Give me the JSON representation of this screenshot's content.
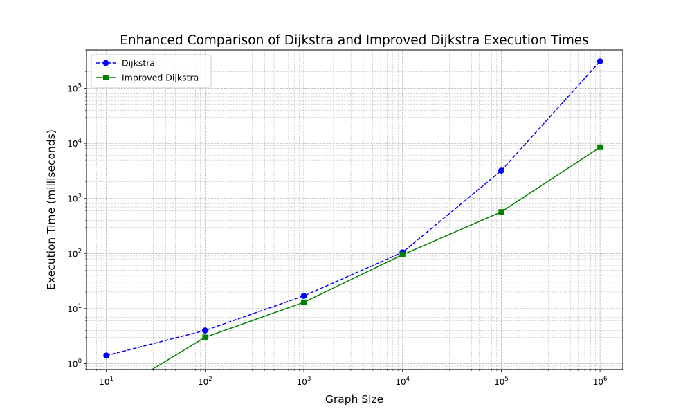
{
  "chart_data": {
    "type": "line",
    "title": "Enhanced Comparison of Dijkstra and Improved Dijkstra Execution Times",
    "xlabel": "Graph Size",
    "ylabel": "Execution Time (milliseconds)",
    "xscale": "log",
    "yscale": "log",
    "xlim": [
      6.3,
      1700000
    ],
    "ylim": [
      0.78,
      500000
    ],
    "grid": true,
    "legend_position": "top-left",
    "x_ticks": [
      {
        "value": 10,
        "base": "10",
        "exp": "1"
      },
      {
        "value": 100,
        "base": "10",
        "exp": "2"
      },
      {
        "value": 1000,
        "base": "10",
        "exp": "3"
      },
      {
        "value": 10000,
        "base": "10",
        "exp": "4"
      },
      {
        "value": 100000,
        "base": "10",
        "exp": "5"
      },
      {
        "value": 1000000,
        "base": "10",
        "exp": "6"
      }
    ],
    "y_ticks": [
      {
        "value": 1,
        "base": "10",
        "exp": "0"
      },
      {
        "value": 10,
        "base": "10",
        "exp": "1"
      },
      {
        "value": 100,
        "base": "10",
        "exp": "2"
      },
      {
        "value": 1000,
        "base": "10",
        "exp": "3"
      },
      {
        "value": 10000,
        "base": "10",
        "exp": "4"
      },
      {
        "value": 100000,
        "base": "10",
        "exp": "5"
      }
    ],
    "series": [
      {
        "name": "Dijkstra",
        "color": "#0000ff",
        "marker": "circle",
        "line_style": "dashed",
        "x": [
          10,
          100,
          1000,
          10000,
          100000,
          1000000
        ],
        "y": [
          1.4,
          4.0,
          17,
          105,
          3200,
          310000
        ]
      },
      {
        "name": "Improved Dijkstra",
        "color": "#008000",
        "marker": "square",
        "line_style": "solid",
        "x": [
          10,
          100,
          1000,
          10000,
          100000,
          1000000
        ],
        "y": [
          0,
          3.0,
          13,
          95,
          570,
          8500
        ]
      }
    ]
  }
}
